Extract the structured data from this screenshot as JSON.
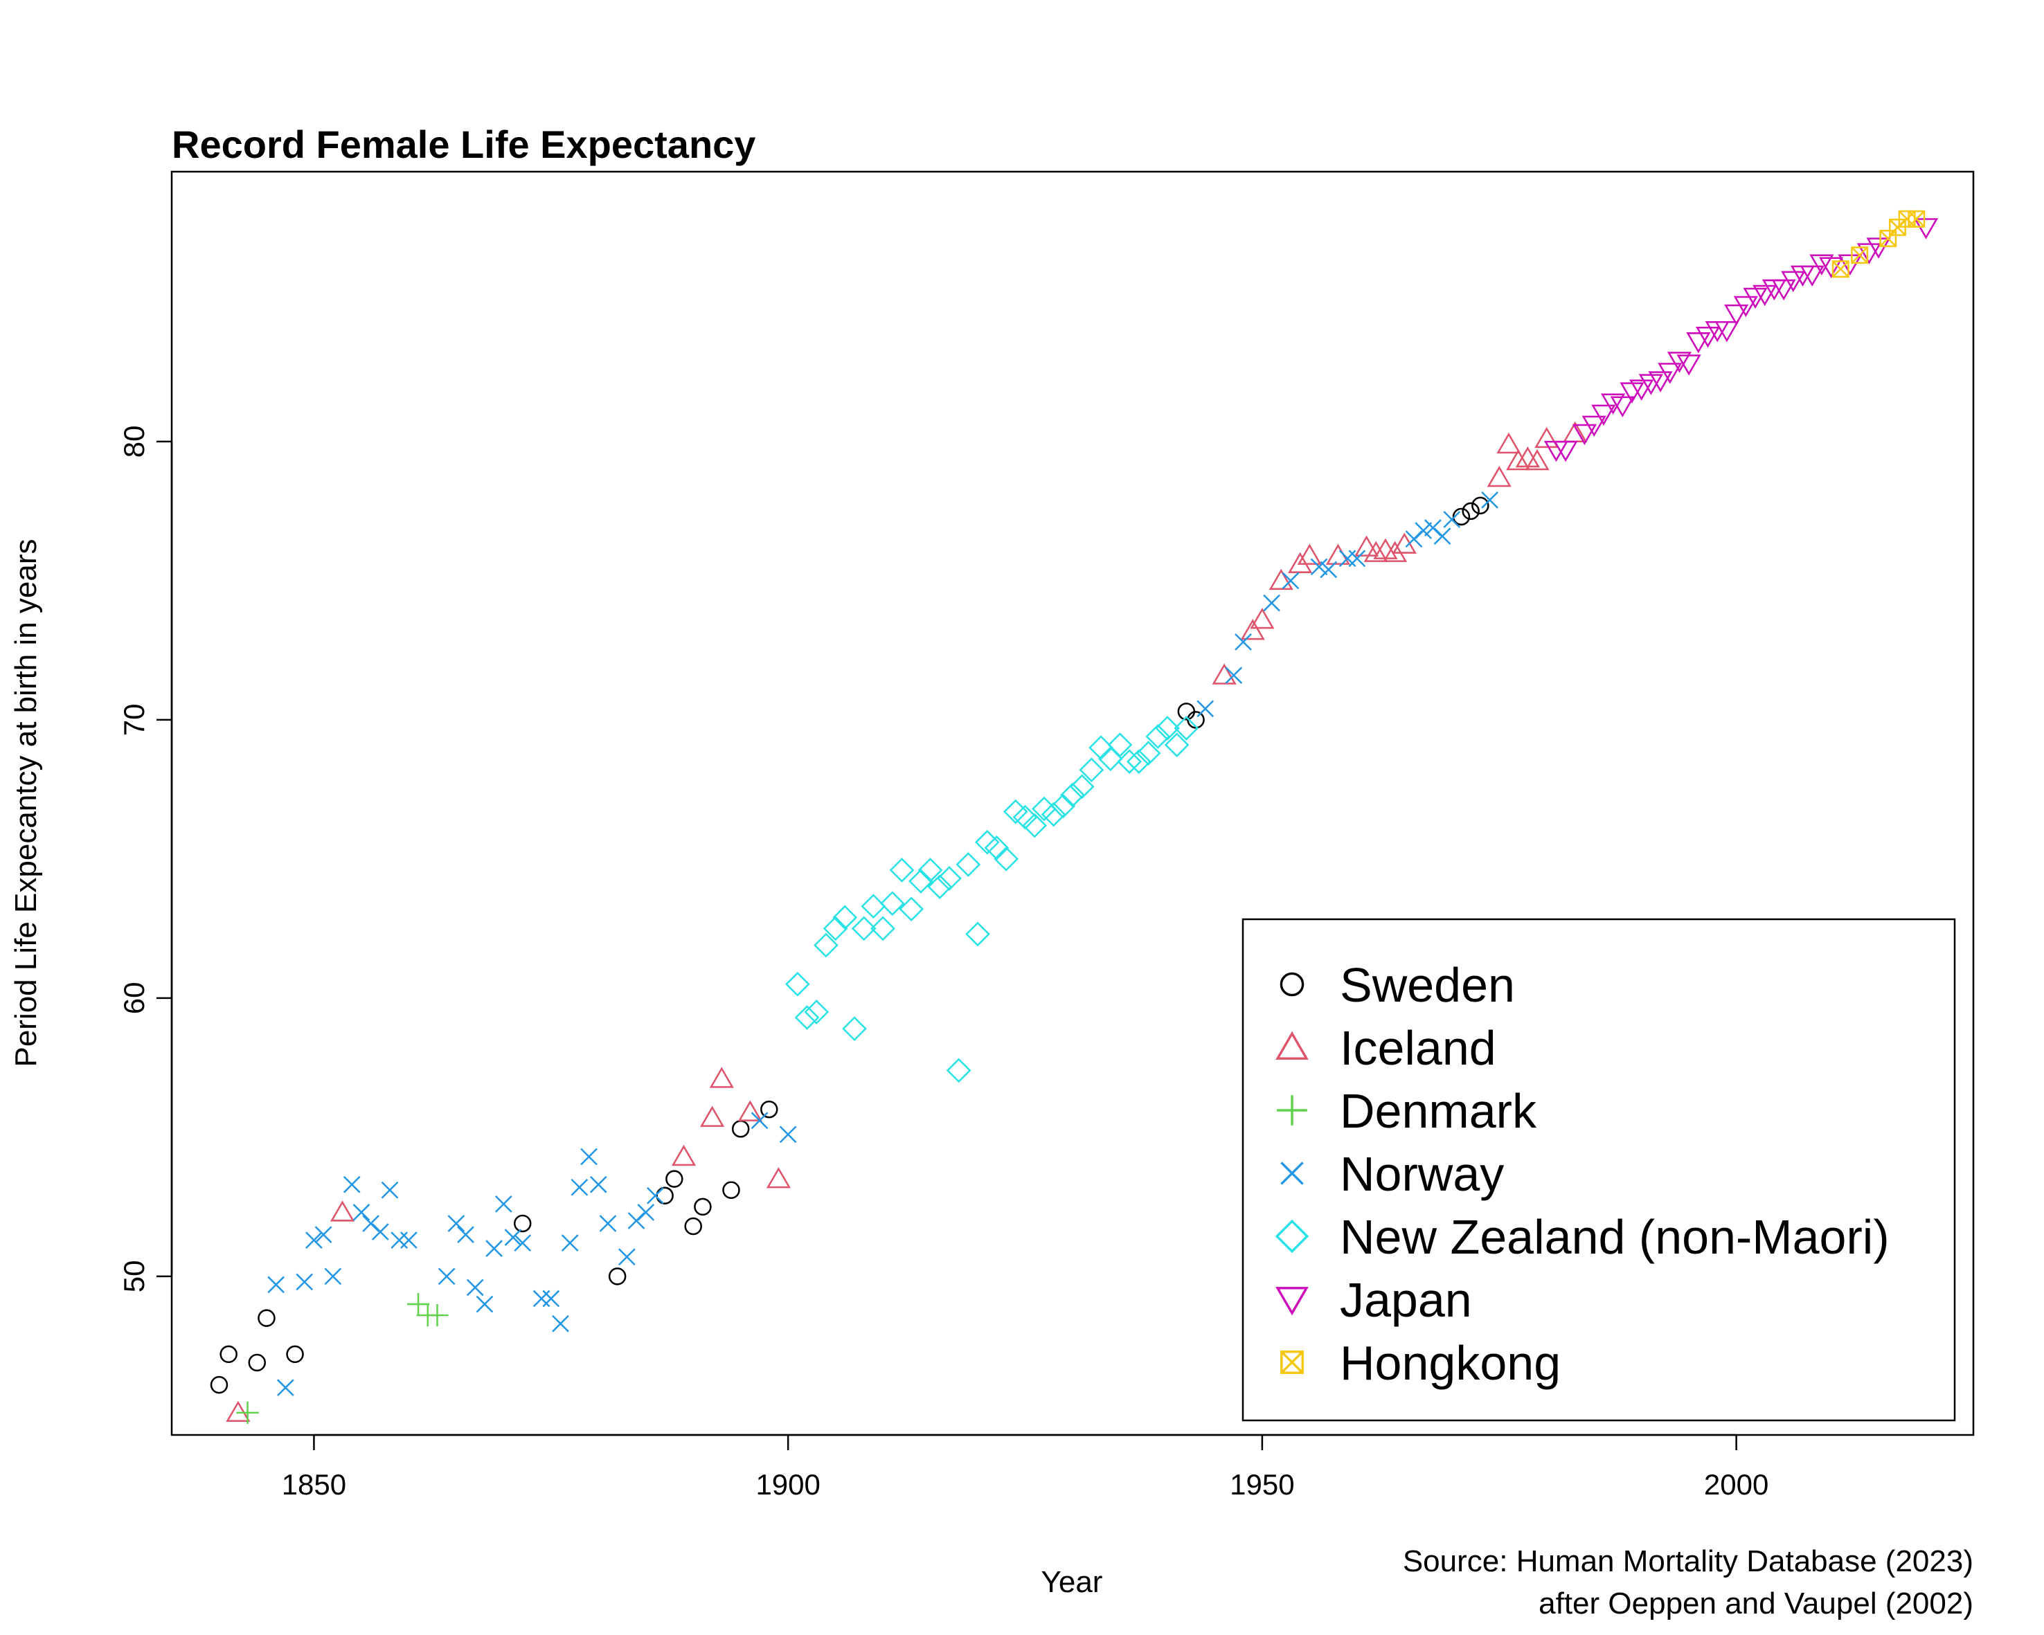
{
  "chart_data": {
    "type": "scatter",
    "title": "Record Female Life Expectancy",
    "xlabel": "Year",
    "ylabel": "Period Life Expecantcy at birth in years",
    "xlim": [
      1835,
      2025
    ],
    "ylim": [
      44.3,
      89.7
    ],
    "xticks": [
      1850,
      1900,
      1950,
      2000
    ],
    "yticks": [
      50,
      60,
      70,
      80
    ],
    "grid": false,
    "legend_position": "bottom-right",
    "source": [
      "Source: Human Mortality Database (2023)",
      "after Oeppen and Vaupel (2002)"
    ],
    "series": [
      {
        "name": "Sweden",
        "color": "#000000",
        "marker": "circle",
        "x": [
          1840,
          1841,
          1844,
          1845,
          1848,
          1872,
          1882,
          1887,
          1888,
          1890,
          1891,
          1894,
          1895,
          1898,
          1942,
          1943,
          1971,
          1972,
          1973
        ],
        "y": [
          46.1,
          47.2,
          46.9,
          48.5,
          47.2,
          51.9,
          50.0,
          52.9,
          53.5,
          51.8,
          52.5,
          53.1,
          55.3,
          56.0,
          70.3,
          70.0,
          77.3,
          77.5,
          77.7
        ]
      },
      {
        "name": "Iceland",
        "color": "#DF536B",
        "marker": "triangle-up",
        "x": [
          1842,
          1853,
          1889,
          1892,
          1893,
          1896,
          1899,
          1946,
          1949,
          1950,
          1952,
          1954,
          1955,
          1958,
          1961,
          1962,
          1963,
          1964,
          1965,
          1975,
          1976,
          1977,
          1978,
          1979,
          1980,
          1983
        ],
        "y": [
          45.1,
          52.3,
          54.3,
          55.7,
          57.1,
          55.9,
          53.5,
          71.6,
          73.2,
          73.6,
          75.0,
          75.6,
          75.9,
          75.9,
          76.2,
          76.0,
          76.1,
          76.0,
          76.3,
          78.7,
          79.9,
          79.3,
          79.4,
          79.3,
          80.1,
          80.3
        ]
      },
      {
        "name": "Denmark",
        "color": "#61D04F",
        "marker": "plus",
        "x": [
          1843,
          1861,
          1862,
          1863
        ],
        "y": [
          45.1,
          49.0,
          48.6,
          48.6
        ]
      },
      {
        "name": "Norway",
        "color": "#2297E6",
        "marker": "cross",
        "x": [
          1846,
          1847,
          1849,
          1850,
          1851,
          1852,
          1854,
          1855,
          1856,
          1857,
          1858,
          1859,
          1860,
          1864,
          1865,
          1866,
          1867,
          1868,
          1869,
          1870,
          1871,
          1872,
          1874,
          1875,
          1876,
          1877,
          1878,
          1879,
          1880,
          1881,
          1883,
          1884,
          1885,
          1886,
          1897,
          1900,
          1944,
          1947,
          1948,
          1951,
          1953,
          1956,
          1957,
          1959,
          1960,
          1966,
          1967,
          1968,
          1969,
          1970,
          1974
        ],
        "y": [
          49.7,
          46.0,
          49.8,
          51.3,
          51.5,
          50.0,
          53.3,
          52.3,
          51.9,
          51.6,
          53.1,
          51.3,
          51.3,
          50.0,
          51.9,
          51.5,
          49.6,
          49.0,
          51.0,
          52.6,
          51.4,
          51.2,
          49.2,
          49.2,
          48.3,
          51.2,
          53.2,
          54.3,
          53.3,
          51.9,
          50.7,
          52.0,
          52.3,
          52.9,
          55.6,
          55.1,
          70.4,
          71.6,
          72.8,
          74.2,
          75.0,
          75.5,
          75.4,
          75.8,
          75.8,
          76.5,
          76.8,
          76.9,
          76.6,
          77.2,
          77.9
        ]
      },
      {
        "name": "New Zealand (non-Maori)",
        "color": "#28E2E5",
        "marker": "diamond",
        "x": [
          1901,
          1902,
          1903,
          1904,
          1905,
          1906,
          1907,
          1908,
          1909,
          1910,
          1911,
          1912,
          1913,
          1914,
          1915,
          1916,
          1917,
          1918,
          1919,
          1920,
          1921,
          1922,
          1923,
          1924,
          1925,
          1926,
          1927,
          1928,
          1929,
          1930,
          1931,
          1932,
          1933,
          1934,
          1935,
          1936,
          1937,
          1938,
          1939,
          1940,
          1941,
          1942
        ],
        "y": [
          60.5,
          59.3,
          59.5,
          61.9,
          62.5,
          62.9,
          58.9,
          62.5,
          63.3,
          62.5,
          63.4,
          64.6,
          63.2,
          64.2,
          64.6,
          64.0,
          64.3,
          57.4,
          64.8,
          62.3,
          65.6,
          65.4,
          65.0,
          66.7,
          66.5,
          66.2,
          66.8,
          66.6,
          66.9,
          67.3,
          67.6,
          68.2,
          69.0,
          68.6,
          69.1,
          68.5,
          68.5,
          68.8,
          69.4,
          69.7,
          69.1,
          69.7
        ]
      },
      {
        "name": "Japan",
        "color": "#CD0BBC",
        "marker": "triangle-down",
        "x": [
          1981,
          1982,
          1984,
          1985,
          1986,
          1987,
          1988,
          1989,
          1990,
          1991,
          1992,
          1993,
          1994,
          1995,
          1996,
          1997,
          1998,
          1999,
          2000,
          2001,
          2002,
          2003,
          2004,
          2005,
          2006,
          2007,
          2008,
          2009,
          2010,
          2012,
          2014,
          2015,
          2020
        ],
        "y": [
          79.7,
          79.7,
          80.3,
          80.6,
          81.0,
          81.4,
          81.3,
          81.8,
          81.9,
          82.1,
          82.2,
          82.5,
          82.9,
          82.8,
          83.6,
          83.8,
          84.0,
          84.0,
          84.6,
          84.9,
          85.2,
          85.3,
          85.5,
          85.5,
          85.8,
          86.0,
          86.0,
          86.4,
          86.3,
          86.4,
          86.8,
          87.0,
          87.7
        ]
      },
      {
        "name": "Hongkong",
        "color": "#F5C710",
        "marker": "square-x",
        "x": [
          2011,
          2013,
          2016,
          2017,
          2018,
          2019
        ],
        "y": [
          86.2,
          86.7,
          87.3,
          87.7,
          88.0,
          88.0
        ]
      }
    ]
  }
}
